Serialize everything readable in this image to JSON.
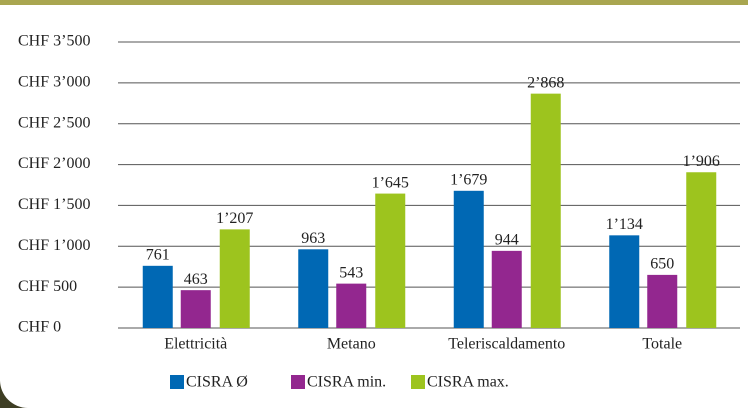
{
  "chart_data": {
    "type": "bar",
    "categories": [
      "Elettricità",
      "Metano",
      "Teleriscaldamento",
      "Totale"
    ],
    "series": [
      {
        "name": "CISRA Ø",
        "color": "#0068b4",
        "values": [
          761,
          963,
          1679,
          1134
        ],
        "value_labels": [
          "761",
          "963",
          "1’679",
          "1’134"
        ]
      },
      {
        "name": "CISRA min.",
        "color": "#93278f",
        "values": [
          463,
          543,
          944,
          650
        ],
        "value_labels": [
          "463",
          "543",
          "944",
          "650"
        ]
      },
      {
        "name": "CISRA max.",
        "color": "#9dc41e",
        "values": [
          1207,
          1645,
          2868,
          1906
        ],
        "value_labels": [
          "1’207",
          "1’645",
          "2’868",
          "1’906"
        ]
      }
    ],
    "ylim": [
      0,
      3500
    ],
    "yticks": [
      {
        "value": 0,
        "label": "CHF 0"
      },
      {
        "value": 500,
        "label": "CHF 500"
      },
      {
        "value": 1000,
        "label": "CHF 1’000"
      },
      {
        "value": 1500,
        "label": "CHF 1’500"
      },
      {
        "value": 2000,
        "label": "CHF 2’000"
      },
      {
        "value": 2500,
        "label": "CHF 2’500"
      },
      {
        "value": 3000,
        "label": "CHF 3’000"
      },
      {
        "value": 3500,
        "label": "CHF 3’500"
      }
    ],
    "grid": true,
    "legend": "bottom"
  }
}
